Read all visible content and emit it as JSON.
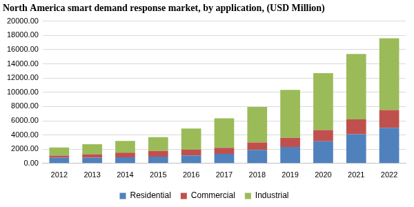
{
  "chart_data": {
    "type": "bar",
    "title": "North America smart demand response market, by application, (USD Million)",
    "categories": [
      "2012",
      "2013",
      "2014",
      "2015",
      "2016",
      "2017",
      "2018",
      "2019",
      "2020",
      "2021",
      "2022"
    ],
    "series": [
      {
        "name": "Residential",
        "color": "#4f81bd",
        "values": [
          800,
          800,
          850,
          950,
          1100,
          1350,
          1900,
          2300,
          3100,
          4100,
          5000
        ]
      },
      {
        "name": "Commercial",
        "color": "#c0504d",
        "values": [
          300,
          500,
          650,
          800,
          850,
          850,
          1050,
          1300,
          1600,
          2100,
          2500
        ]
      },
      {
        "name": "Industrial",
        "color": "#9bbb59",
        "values": [
          1150,
          1400,
          1650,
          1950,
          2950,
          4150,
          5000,
          6750,
          8000,
          9200,
          10100
        ]
      }
    ],
    "stacked": true,
    "ylim": [
      0,
      20000
    ],
    "yticks": [
      {
        "value": 0,
        "label": "0.00"
      },
      {
        "value": 2000,
        "label": "2000.00"
      },
      {
        "value": 4000,
        "label": "4000.00"
      },
      {
        "value": 6000,
        "label": "6000.00"
      },
      {
        "value": 8000,
        "label": "8000.00"
      },
      {
        "value": 10000,
        "label": "10000.00"
      },
      {
        "value": 12000,
        "label": "12000.00"
      },
      {
        "value": 14000,
        "label": "14000.00"
      },
      {
        "value": 16000,
        "label": "16000.00"
      },
      {
        "value": 18000,
        "label": "18000.00"
      },
      {
        "value": 20000,
        "label": "20000.00"
      }
    ],
    "grid": true,
    "legend": "bottom"
  }
}
